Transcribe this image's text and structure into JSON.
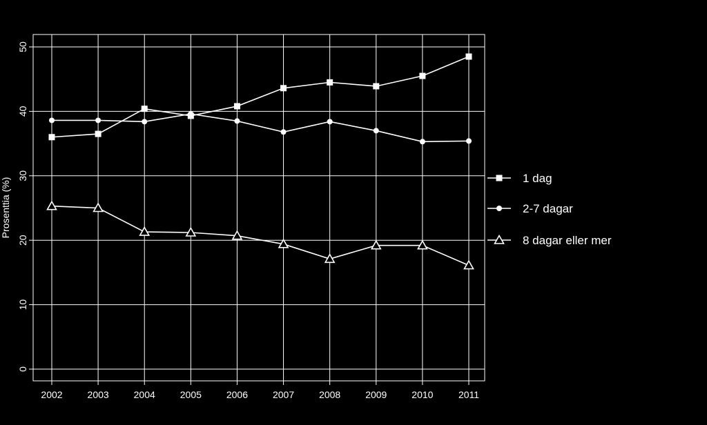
{
  "chart_data": {
    "type": "line",
    "title": "",
    "xlabel": "",
    "ylabel": "Prosenttia (%)",
    "x": [
      2002,
      2003,
      2004,
      2005,
      2006,
      2007,
      2008,
      2009,
      2010,
      2011
    ],
    "ylim": [
      0,
      50
    ],
    "yticks": [
      0,
      10,
      20,
      30,
      40,
      50
    ],
    "grid": true,
    "legend_position": "right",
    "series": [
      {
        "name": "1 dag",
        "marker": "square",
        "values": [
          36.0,
          36.5,
          40.4,
          39.3,
          40.8,
          43.6,
          44.5,
          43.9,
          45.5,
          48.5
        ]
      },
      {
        "name": "2-7 dagar",
        "marker": "circle",
        "values": [
          38.6,
          38.6,
          38.4,
          39.6,
          38.5,
          36.8,
          38.4,
          37.0,
          35.3,
          35.4
        ]
      },
      {
        "name": "8 dagar eller mer",
        "marker": "triangle",
        "values": [
          25.3,
          25.0,
          21.3,
          21.2,
          20.7,
          19.4,
          17.1,
          19.2,
          19.2,
          16.1
        ]
      }
    ],
    "colors": {
      "background": "#000000",
      "line": "#ffffff",
      "grid": "#ffffff"
    }
  }
}
